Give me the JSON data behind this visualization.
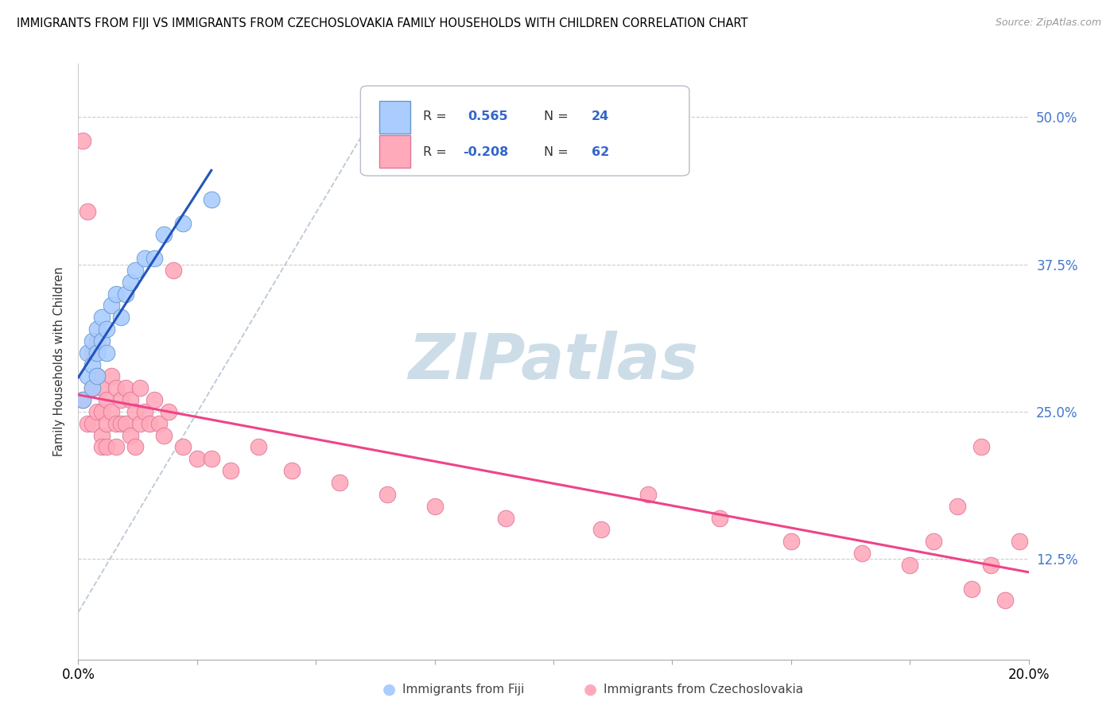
{
  "title": "IMMIGRANTS FROM FIJI VS IMMIGRANTS FROM CZECHOSLOVAKIA FAMILY HOUSEHOLDS WITH CHILDREN CORRELATION CHART",
  "source": "Source: ZipAtlas.com",
  "ylabel": "Family Households with Children",
  "ytick_labels": [
    "12.5%",
    "25.0%",
    "37.5%",
    "50.0%"
  ],
  "ytick_values": [
    0.125,
    0.25,
    0.375,
    0.5
  ],
  "xmin": 0.0,
  "xmax": 0.2,
  "ymin": 0.04,
  "ymax": 0.545,
  "fiji_color": "#aaccff",
  "fiji_edge": "#6699cc",
  "fiji_line_color": "#2255bb",
  "czech_color": "#ffaabb",
  "czech_edge": "#dd7799",
  "czech_line_color": "#ee4488",
  "watermark": "ZIPatlas",
  "watermark_color": "#ccdde8",
  "ref_line_color": "#aabbcc",
  "fiji_scatter_x": [
    0.001,
    0.002,
    0.002,
    0.003,
    0.003,
    0.003,
    0.004,
    0.004,
    0.004,
    0.005,
    0.005,
    0.006,
    0.006,
    0.007,
    0.008,
    0.009,
    0.01,
    0.011,
    0.012,
    0.014,
    0.016,
    0.018,
    0.022,
    0.028
  ],
  "fiji_scatter_y": [
    0.26,
    0.28,
    0.3,
    0.29,
    0.31,
    0.27,
    0.3,
    0.32,
    0.28,
    0.31,
    0.33,
    0.3,
    0.32,
    0.34,
    0.35,
    0.33,
    0.35,
    0.36,
    0.37,
    0.38,
    0.38,
    0.4,
    0.41,
    0.43
  ],
  "czech_scatter_x": [
    0.001,
    0.001,
    0.002,
    0.002,
    0.003,
    0.003,
    0.003,
    0.004,
    0.004,
    0.004,
    0.005,
    0.005,
    0.005,
    0.005,
    0.006,
    0.006,
    0.006,
    0.007,
    0.007,
    0.008,
    0.008,
    0.008,
    0.009,
    0.009,
    0.01,
    0.01,
    0.011,
    0.011,
    0.012,
    0.012,
    0.013,
    0.013,
    0.014,
    0.015,
    0.016,
    0.017,
    0.018,
    0.019,
    0.02,
    0.022,
    0.025,
    0.028,
    0.032,
    0.038,
    0.045,
    0.055,
    0.065,
    0.075,
    0.09,
    0.11,
    0.12,
    0.135,
    0.15,
    0.165,
    0.175,
    0.18,
    0.185,
    0.188,
    0.19,
    0.192,
    0.195,
    0.198
  ],
  "czech_scatter_y": [
    0.48,
    0.26,
    0.42,
    0.24,
    0.3,
    0.27,
    0.24,
    0.31,
    0.28,
    0.25,
    0.27,
    0.25,
    0.23,
    0.22,
    0.26,
    0.24,
    0.22,
    0.28,
    0.25,
    0.27,
    0.24,
    0.22,
    0.26,
    0.24,
    0.27,
    0.24,
    0.26,
    0.23,
    0.25,
    0.22,
    0.27,
    0.24,
    0.25,
    0.24,
    0.26,
    0.24,
    0.23,
    0.25,
    0.37,
    0.22,
    0.21,
    0.21,
    0.2,
    0.22,
    0.2,
    0.19,
    0.18,
    0.17,
    0.16,
    0.15,
    0.18,
    0.16,
    0.14,
    0.13,
    0.12,
    0.14,
    0.17,
    0.1,
    0.22,
    0.12,
    0.09,
    0.14
  ],
  "legend_fiji_label": "Immigrants from Fiji",
  "legend_czech_label": "Immigrants from Czechoslovakia",
  "fiji_R_text": "0.565",
  "fiji_N_text": "24",
  "czech_R_text": "-0.208",
  "czech_N_text": "62"
}
